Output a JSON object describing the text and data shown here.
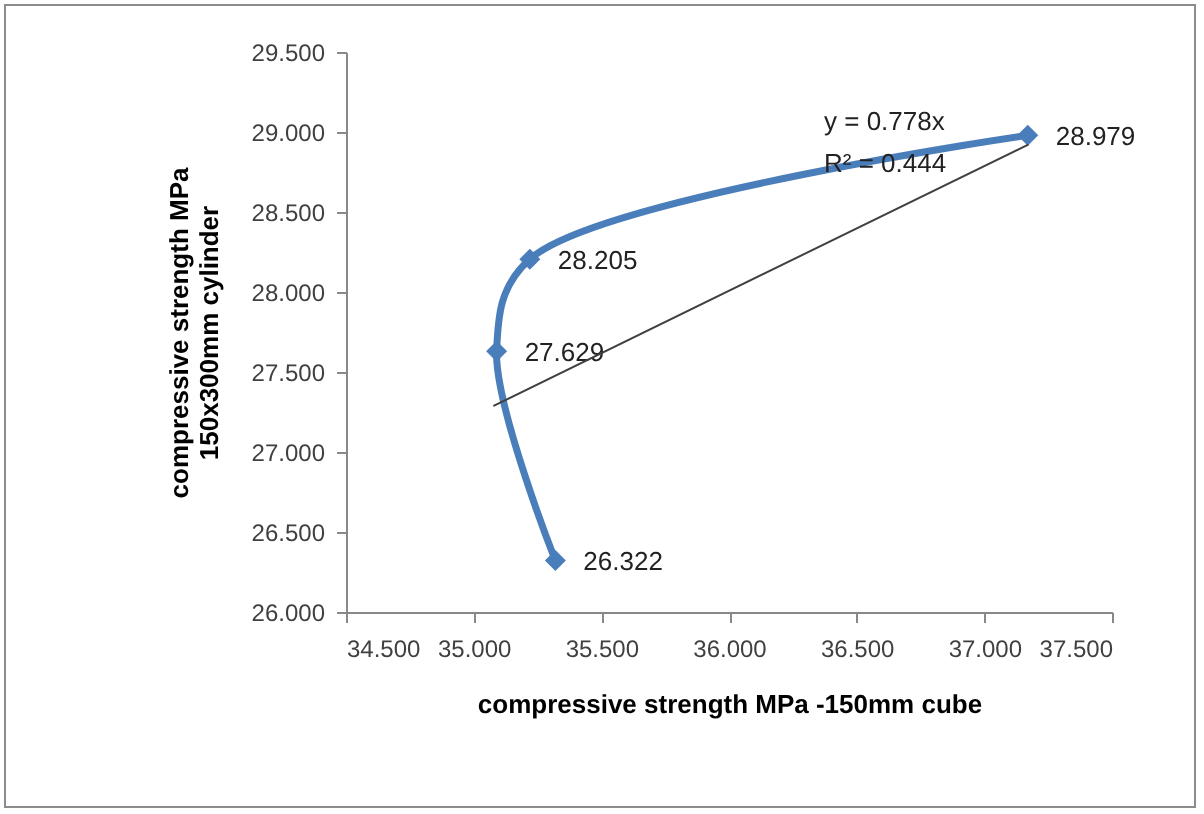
{
  "chart_data": {
    "type": "line",
    "xlabel": "compressive strength MPa -150mm cube",
    "ylabel": "compressive strength MPa\n150x300mm cylinder",
    "xlim": [
      34.5,
      37.5
    ],
    "ylim": [
      26,
      29.5
    ],
    "xticks": [
      {
        "value": 34.5,
        "label": "34.500"
      },
      {
        "value": 35,
        "label": "35.000"
      },
      {
        "value": 35.5,
        "label": "35.500"
      },
      {
        "value": 36,
        "label": "36.000"
      },
      {
        "value": 36.5,
        "label": "36.500"
      },
      {
        "value": 37,
        "label": "37.000"
      },
      {
        "value": 37.5,
        "label": "37.500"
      }
    ],
    "yticks": [
      {
        "value": 26,
        "label": "26.000"
      },
      {
        "value": 26.5,
        "label": "26.500"
      },
      {
        "value": 27,
        "label": "27.000"
      },
      {
        "value": 27.5,
        "label": "27.500"
      },
      {
        "value": 28,
        "label": "28.000"
      },
      {
        "value": 28.5,
        "label": "28.500"
      },
      {
        "value": 29,
        "label": "29.000"
      },
      {
        "value": 29.5,
        "label": "29.500"
      }
    ],
    "grid": false,
    "marker": "diamond",
    "line_style": "solid",
    "series": [
      {
        "color": "#4a7ebb",
        "x": [
          35.32,
          35.09,
          35.22,
          37.17
        ],
        "values": [
          26.322,
          27.629,
          28.205,
          28.979
        ],
        "value_labels": [
          "26.322",
          "27.629",
          "28.205",
          "28.979"
        ]
      },
      {
        "type": "line",
        "color": "#404040",
        "marker": "none",
        "x": [
          35.08,
          37.17
        ],
        "values": [
          27.29,
          28.92
        ]
      }
    ],
    "annotations": [
      "y = 0.778x",
      "R² = 0.444"
    ]
  }
}
